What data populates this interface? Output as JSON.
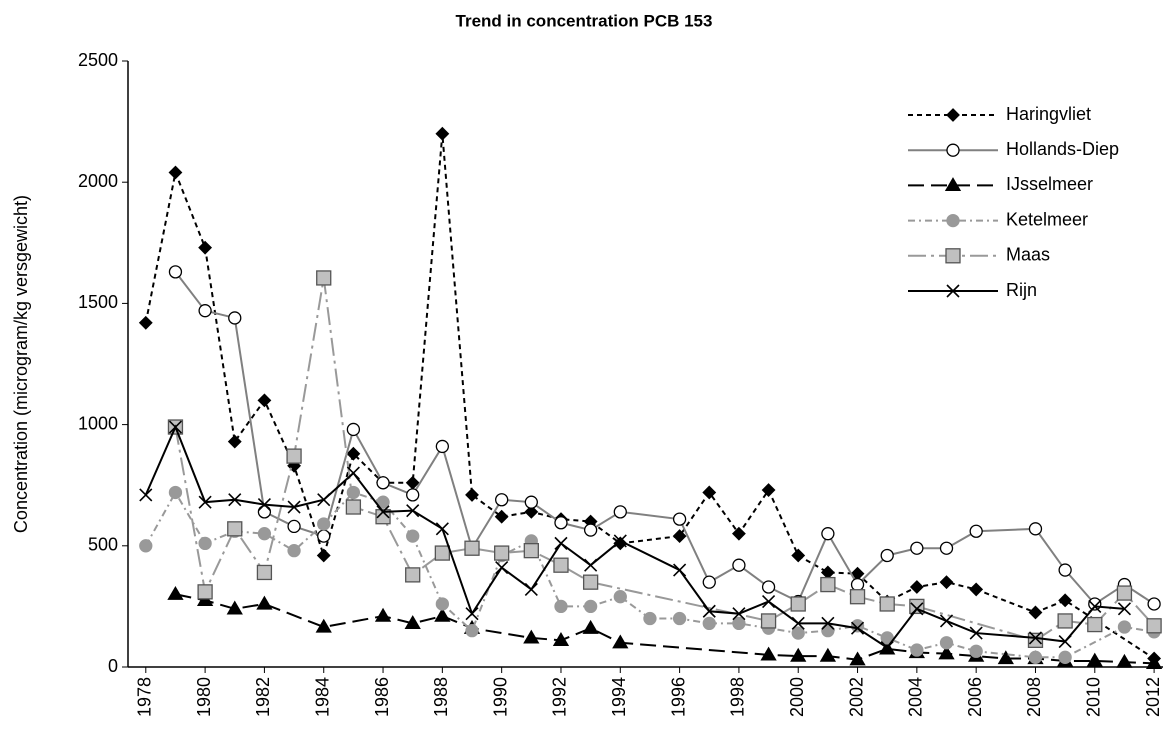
{
  "chart_data": {
    "type": "line",
    "title": "Trend in concentration PCB 153",
    "y_label": "Concentration  (microgram/kg versgewicht)",
    "xlim": [
      1977.4,
      2012.3
    ],
    "xticks": [
      1978,
      1980,
      1982,
      1984,
      1986,
      1988,
      1990,
      1992,
      1994,
      1996,
      1998,
      2000,
      2002,
      2004,
      2006,
      2008,
      2010,
      2012
    ],
    "ylim": [
      0,
      2500
    ],
    "yticks": [
      0,
      500,
      1000,
      1500,
      2000,
      2500
    ],
    "grid": false,
    "legend": "upper right",
    "series": [
      {
        "name": "Haringvliet",
        "color": "#000000",
        "marker": "diamond",
        "marker_fill": "#000000",
        "line_style": "dashed",
        "x": [
          1978,
          1979,
          1980,
          1981,
          1982,
          1983,
          1984,
          1985,
          1986,
          1987,
          1988,
          1989,
          1990,
          1991,
          1992,
          1993,
          1994,
          1996,
          1997,
          1998,
          1999,
          2000,
          2001,
          2002,
          2003,
          2004,
          2005,
          2006,
          2008,
          2009,
          2012
        ],
        "values": [
          1420,
          2040,
          1730,
          930,
          1100,
          830,
          460,
          880,
          760,
          760,
          2200,
          710,
          620,
          640,
          610,
          600,
          510,
          540,
          720,
          550,
          730,
          460,
          390,
          385,
          270,
          330,
          350,
          320,
          225,
          275,
          35
        ]
      },
      {
        "name": "Hollands-Diep",
        "color": "#808080",
        "marker": "circle",
        "marker_fill": "#ffffff",
        "line_style": "solid",
        "x": [
          1979,
          1980,
          1981,
          1982,
          1983,
          1984,
          1985,
          1986,
          1987,
          1988,
          1989,
          1990,
          1991,
          1992,
          1993,
          1994,
          1996,
          1997,
          1998,
          1999,
          2000,
          2001,
          2002,
          2003,
          2004,
          2005,
          2006,
          2008,
          2009,
          2010,
          2011,
          2012
        ],
        "values": [
          1630,
          1470,
          1440,
          640,
          580,
          540,
          980,
          760,
          710,
          910,
          490,
          690,
          680,
          595,
          565,
          640,
          610,
          350,
          420,
          330,
          270,
          550,
          340,
          460,
          490,
          490,
          560,
          570,
          400,
          260,
          340,
          260
        ]
      },
      {
        "name": "IJsselmeer",
        "color": "#000000",
        "marker": "triangle",
        "marker_fill": "#000000",
        "line_style": "longdash",
        "x": [
          1979,
          1980,
          1981,
          1982,
          1984,
          1986,
          1987,
          1988,
          1989,
          1991,
          1992,
          1993,
          1994,
          1999,
          2000,
          2001,
          2002,
          2003,
          2004,
          2005,
          2006,
          2007,
          2008,
          2009,
          2010,
          2011,
          2012
        ],
        "values": [
          300,
          275,
          240,
          260,
          165,
          210,
          180,
          210,
          160,
          120,
          110,
          160,
          100,
          50,
          45,
          45,
          30,
          75,
          60,
          55,
          45,
          35,
          35,
          25,
          25,
          20,
          15
        ]
      },
      {
        "name": "Ketelmeer",
        "color": "#999999",
        "marker": "circle",
        "marker_fill": "#999999",
        "line_style": "dashdot",
        "x": [
          1978,
          1979,
          1980,
          1981,
          1982,
          1983,
          1984,
          1985,
          1986,
          1987,
          1988,
          1989,
          1990,
          1991,
          1992,
          1993,
          1994,
          1995,
          1996,
          1997,
          1998,
          1999,
          2000,
          2001,
          2002,
          2003,
          2004,
          2005,
          2006,
          2008,
          2009,
          2011,
          2012
        ],
        "values": [
          500,
          720,
          510,
          560,
          550,
          480,
          590,
          720,
          680,
          540,
          260,
          150,
          460,
          520,
          250,
          250,
          290,
          200,
          200,
          180,
          180,
          160,
          140,
          150,
          170,
          120,
          70,
          100,
          65,
          40,
          40,
          165,
          145
        ]
      },
      {
        "name": "Maas",
        "color": "#999999",
        "marker": "square",
        "marker_fill": "#c0c0c0",
        "line_style": "longdashdot",
        "x": [
          1979,
          1980,
          1981,
          1982,
          1983,
          1984,
          1985,
          1986,
          1987,
          1988,
          1989,
          1990,
          1991,
          1992,
          1993,
          1999,
          2000,
          2001,
          2002,
          2003,
          2004,
          2008,
          2009,
          2010,
          2011,
          2012
        ],
        "values": [
          990,
          310,
          570,
          390,
          870,
          1605,
          660,
          620,
          380,
          470,
          490,
          470,
          480,
          420,
          350,
          190,
          260,
          340,
          290,
          260,
          250,
          110,
          190,
          175,
          305,
          170
        ]
      },
      {
        "name": "Rijn",
        "color": "#000000",
        "marker": "x",
        "marker_fill": "none",
        "line_style": "solid",
        "x": [
          1978,
          1979,
          1980,
          1981,
          1982,
          1983,
          1984,
          1985,
          1986,
          1987,
          1988,
          1989,
          1990,
          1991,
          1992,
          1993,
          1994,
          1996,
          1997,
          1998,
          1999,
          2000,
          2001,
          2002,
          2003,
          2004,
          2005,
          2006,
          2008,
          2009,
          2010,
          2011
        ],
        "values": [
          710,
          990,
          680,
          690,
          670,
          660,
          690,
          800,
          640,
          645,
          570,
          220,
          410,
          320,
          510,
          420,
          520,
          400,
          230,
          220,
          270,
          180,
          180,
          160,
          80,
          240,
          190,
          140,
          120,
          105,
          250,
          240
        ]
      }
    ]
  }
}
